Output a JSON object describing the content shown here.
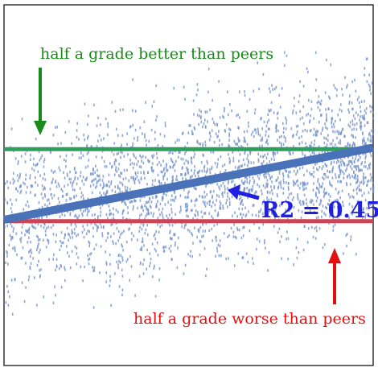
{
  "chart_data": {
    "type": "scatter",
    "title": "",
    "xlabel": "",
    "ylabel": "",
    "xlim": [
      0,
      100
    ],
    "ylim": [
      -2.5,
      2.5
    ],
    "grid": false,
    "legend": "none",
    "reference_lines": [
      {
        "label": "half a grade better than peers",
        "y": 0.5,
        "color": "#2e9e5b"
      },
      {
        "label": "half a grade worse than peers",
        "y": -0.5,
        "color": "#cc4455"
      }
    ],
    "regression": {
      "label": "R2 = 0.45",
      "x": [
        0,
        100
      ],
      "y": [
        -0.48,
        0.52
      ],
      "color": "#4a72b8"
    },
    "scatter_color": "#6f8fc9"
  },
  "annotations": {
    "top_text": "half a grade better than peers",
    "bottom_text": "half a grade worse than peers",
    "r2_text": "R2 = 0.45",
    "colors": {
      "green": "#1a8a1a",
      "red": "#e01010",
      "blue": "#2020e0"
    }
  }
}
